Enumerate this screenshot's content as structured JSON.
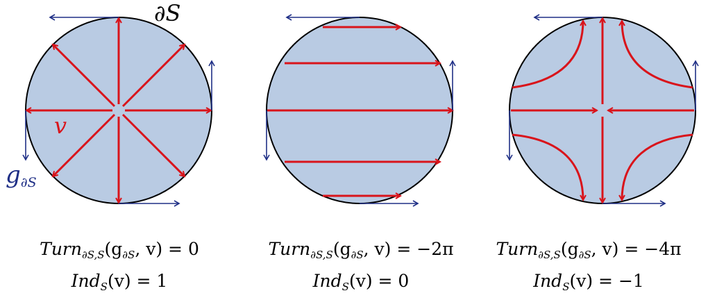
{
  "colors": {
    "disc_fill": "#b9cbe3",
    "disc_stroke": "#000000",
    "field": "#d9141b",
    "boundary_field": "#1f2f86"
  },
  "labels": {
    "boundary": "∂S",
    "field": "v",
    "boundary_field": "g",
    "boundary_field_sub": "∂S"
  },
  "panels": [
    {
      "turn_name": "Turn",
      "turn_sub": "∂S,S",
      "turn_args": "(g",
      "turn_args_sub": "∂S",
      "turn_rest": ", v) = 0",
      "ind_name": "Ind",
      "ind_sub": "S",
      "ind_rest": "(v) = 1"
    },
    {
      "turn_name": "Turn",
      "turn_sub": "∂S,S",
      "turn_args": "(g",
      "turn_args_sub": "∂S",
      "turn_rest": ", v) = −2π",
      "ind_name": "Ind",
      "ind_sub": "S",
      "ind_rest": "(v) = 0"
    },
    {
      "turn_name": "Turn",
      "turn_sub": "∂S,S",
      "turn_args": "(g",
      "turn_args_sub": "∂S",
      "turn_rest": ", v) = −4π",
      "ind_name": "Ind",
      "ind_sub": "S",
      "ind_rest": "(v) = −1"
    }
  ]
}
